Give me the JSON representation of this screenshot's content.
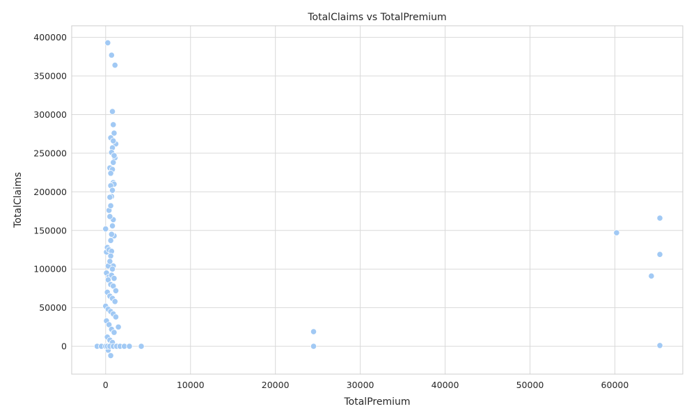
{
  "chart_data": {
    "type": "scatter",
    "title": "TotalClaims vs TotalPremium",
    "xlabel": "TotalPremium",
    "ylabel": "TotalClaims",
    "xlim": [
      -4000,
      68000
    ],
    "ylim": [
      -36000,
      415000
    ],
    "x_ticks": [
      0,
      10000,
      20000,
      30000,
      40000,
      50000,
      60000
    ],
    "y_ticks": [
      0,
      50000,
      100000,
      150000,
      200000,
      250000,
      300000,
      350000,
      400000
    ],
    "grid": true,
    "marker_color": "#a1c9f4",
    "series": [
      {
        "name": "TotalClaims",
        "x": [
          250,
          700,
          1100,
          800,
          900,
          1000,
          1200,
          600,
          900,
          800,
          1100,
          700,
          1000,
          900,
          500,
          800,
          600,
          900,
          1000,
          600,
          800,
          700,
          500,
          400,
          600,
          900,
          800,
          500,
          1000,
          700,
          600,
          0,
          100,
          200,
          400,
          700,
          600,
          900,
          300,
          500,
          800,
          100,
          400,
          700,
          1000,
          300,
          600,
          900,
          1200,
          200,
          500,
          800,
          1100,
          0,
          300,
          600,
          900,
          1200,
          1500,
          100,
          400,
          700,
          1000,
          200,
          500,
          800,
          300,
          600,
          -1000,
          -500,
          0,
          200,
          500,
          900,
          1300,
          1700,
          2200,
          2800,
          4200,
          24500,
          24500,
          60200,
          65300,
          65300,
          64300,
          65300
        ],
        "y": [
          393000,
          377000,
          364000,
          304000,
          287000,
          276000,
          262000,
          270000,
          266000,
          257000,
          244000,
          251000,
          247000,
          238000,
          231000,
          229000,
          224000,
          212000,
          210000,
          208000,
          202000,
          194000,
          193000,
          176000,
          182000,
          164000,
          156000,
          168000,
          143000,
          145000,
          137000,
          152000,
          122000,
          128000,
          125000,
          123000,
          117000,
          104000,
          104000,
          110000,
          100000,
          95000,
          90000,
          92000,
          88000,
          86000,
          80000,
          78000,
          72000,
          70000,
          65000,
          62000,
          58000,
          52000,
          48000,
          45000,
          42000,
          38000,
          25000,
          33000,
          28000,
          22000,
          18000,
          12000,
          8000,
          5000,
          -5000,
          -12000,
          0,
          0,
          0,
          0,
          0,
          0,
          0,
          0,
          0,
          0,
          0,
          19000,
          0,
          147000,
          166000,
          119000,
          91000,
          1000
        ]
      }
    ]
  }
}
